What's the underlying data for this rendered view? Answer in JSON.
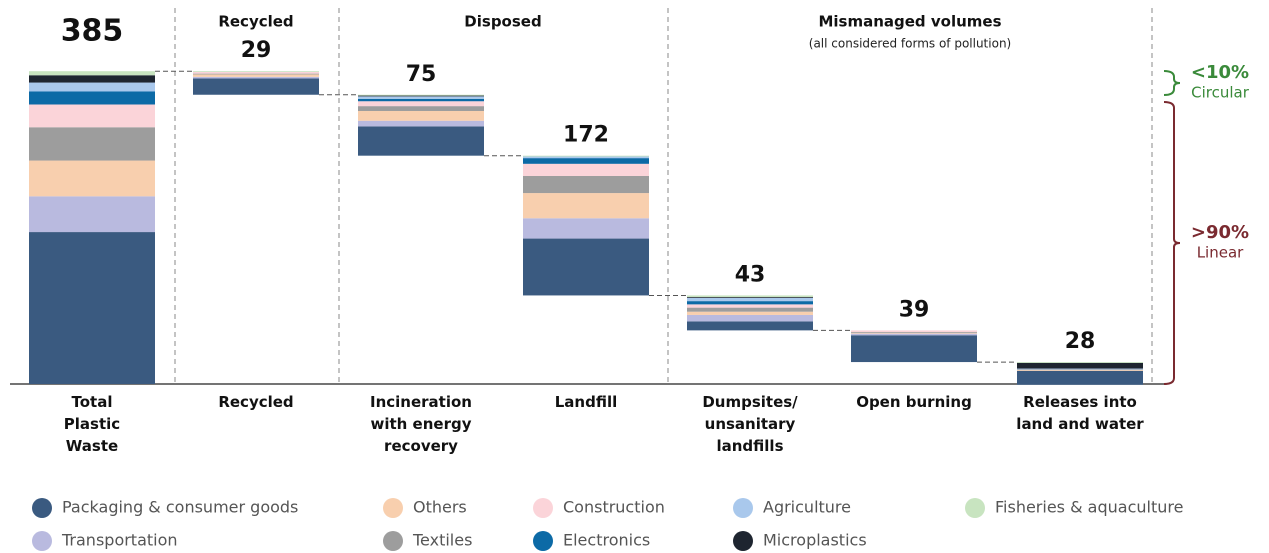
{
  "chart_data": {
    "type": "waterfall",
    "categories": [
      "Total\nPlastic\nWaste",
      "Recycled",
      "Incineration\nwith energy\nrecovery",
      "Landfill",
      "Dumpsites/\nunsanitary\nlandfills",
      "Open burning",
      "Releases into\nland and water"
    ],
    "totals": [
      385,
      29,
      75,
      172,
      43,
      39,
      28
    ],
    "groups": [
      {
        "label": "Recycled"
      },
      {
        "label": "Disposed"
      },
      {
        "label": "Mismanaged volumes",
        "sublabel": "(all considered forms of pollution)"
      }
    ],
    "annotations": [
      {
        "label": "<10%",
        "sublabel": "Circular",
        "color": "#3a8a3a"
      },
      {
        "label": ">90%",
        "sublabel": "Linear",
        "color": "#7a2a30"
      }
    ],
    "ylim": [
      0,
      400
    ],
    "series": [
      {
        "name": "Packaging & consumer goods",
        "color": "#3a5a80",
        "values": [
          187,
          20,
          36,
          70,
          11,
          33,
          17
        ]
      },
      {
        "name": "Transportation",
        "color": "#b9badf",
        "values": [
          44,
          2,
          7,
          25,
          8,
          2,
          0
        ]
      },
      {
        "name": "Others",
        "color": "#f8cfae",
        "values": [
          44,
          3,
          12,
          31,
          4,
          1,
          1
        ]
      },
      {
        "name": "Textiles",
        "color": "#9d9d9d",
        "values": [
          41,
          1,
          6,
          21,
          5,
          1,
          1
        ]
      },
      {
        "name": "Construction",
        "color": "#fbd4d9",
        "values": [
          28,
          2,
          6,
          15,
          4,
          2,
          0
        ]
      },
      {
        "name": "Electronics",
        "color": "#0c6aa6",
        "values": [
          16,
          0,
          3,
          7,
          4,
          0,
          0
        ]
      },
      {
        "name": "Agriculture",
        "color": "#a9c8ec",
        "values": [
          11,
          0,
          3,
          2,
          4,
          0,
          1
        ]
      },
      {
        "name": "Microplastics",
        "color": "#1e2530",
        "values": [
          9,
          0,
          1,
          0,
          1,
          0,
          7
        ]
      },
      {
        "name": "Fisheries & aquaculture",
        "color": "#c8e4c0",
        "values": [
          5,
          1,
          1,
          1,
          2,
          0,
          1
        ]
      }
    ]
  }
}
